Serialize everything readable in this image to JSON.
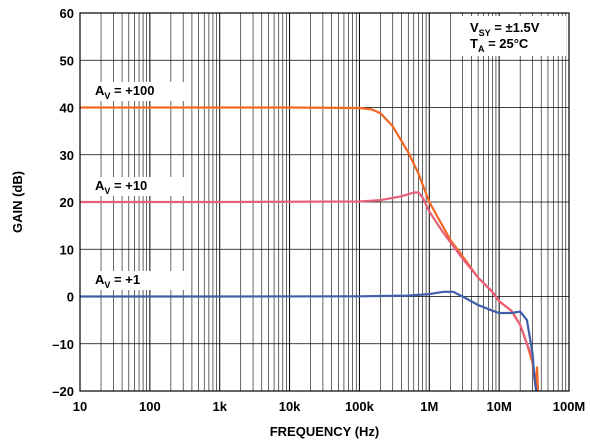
{
  "chart_data": {
    "type": "line",
    "title": "",
    "xlabel": "FREQUENCY (Hz)",
    "ylabel": "GAIN (dB)",
    "x_scale": "log",
    "xlim": [
      10,
      100000000
    ],
    "ylim": [
      -20,
      60
    ],
    "x_ticks": [
      10,
      100,
      1000,
      10000,
      100000,
      1000000,
      10000000,
      100000000
    ],
    "x_tick_labels": [
      "10",
      "100",
      "1k",
      "10k",
      "100k",
      "1M",
      "10M",
      "100M"
    ],
    "y_ticks": [
      -20,
      -10,
      0,
      10,
      20,
      30,
      40,
      50,
      60
    ],
    "y_tick_labels": [
      "–20",
      "–10",
      "0",
      "10",
      "20",
      "30",
      "40",
      "50",
      "60"
    ],
    "grid": true,
    "conditions": {
      "line1": {
        "main": "V",
        "sub": "SY",
        "rest": " = ±1.5V"
      },
      "line2": {
        "main": "T",
        "sub": "A",
        "rest": " = 25°C"
      }
    },
    "series": [
      {
        "name": "+100",
        "label": {
          "main": "A",
          "sub": "V",
          "rest": " = +100"
        },
        "color": "#f26722",
        "points": [
          [
            10,
            40
          ],
          [
            1000,
            40
          ],
          [
            10000,
            40
          ],
          [
            100000,
            39.9
          ],
          [
            150000,
            39.6
          ],
          [
            200000,
            38.8
          ],
          [
            300000,
            36
          ],
          [
            500000,
            30.5
          ],
          [
            700000,
            26
          ],
          [
            1000000,
            20
          ],
          [
            2000000,
            12
          ],
          [
            3000000,
            8.5
          ],
          [
            5000000,
            4
          ],
          [
            8000000,
            1
          ],
          [
            10000000,
            -1
          ],
          [
            15000000,
            -3
          ],
          [
            20000000,
            -6
          ],
          [
            25000000,
            -10
          ],
          [
            30000000,
            -14
          ],
          [
            33000000,
            -19
          ],
          [
            35000000,
            -15
          ],
          [
            36000000,
            -20
          ]
        ]
      },
      {
        "name": "+10",
        "label": {
          "main": "A",
          "sub": "V",
          "rest": " = +10"
        },
        "color": "#e8607a",
        "points": [
          [
            10,
            20
          ],
          [
            1000,
            20
          ],
          [
            100000,
            20.1
          ],
          [
            200000,
            20.4
          ],
          [
            400000,
            21.2
          ],
          [
            600000,
            22
          ],
          [
            700000,
            22
          ],
          [
            800000,
            21
          ],
          [
            1000000,
            18
          ],
          [
            1500000,
            14
          ],
          [
            2000000,
            11.5
          ],
          [
            3000000,
            8
          ],
          [
            5000000,
            4
          ],
          [
            8000000,
            1
          ],
          [
            10000000,
            -1
          ],
          [
            15000000,
            -3
          ],
          [
            20000000,
            -6
          ],
          [
            25000000,
            -10
          ],
          [
            30000000,
            -13
          ],
          [
            32000000,
            -17
          ],
          [
            34000000,
            -20
          ]
        ]
      },
      {
        "name": "+1",
        "label": {
          "main": "A",
          "sub": "V",
          "rest": " = +1"
        },
        "color": "#3f5fa8",
        "points": [
          [
            10,
            0
          ],
          [
            1000,
            0
          ],
          [
            100000,
            0.05
          ],
          [
            500000,
            0.2
          ],
          [
            1000000,
            0.5
          ],
          [
            1600000,
            1
          ],
          [
            2200000,
            1
          ],
          [
            3000000,
            0
          ],
          [
            5000000,
            -1.8
          ],
          [
            8000000,
            -3
          ],
          [
            10000000,
            -3.5
          ],
          [
            15000000,
            -3.5
          ],
          [
            20000000,
            -3.2
          ],
          [
            25000000,
            -5
          ],
          [
            30000000,
            -12
          ],
          [
            32000000,
            -17
          ],
          [
            34000000,
            -20
          ]
        ]
      }
    ]
  }
}
